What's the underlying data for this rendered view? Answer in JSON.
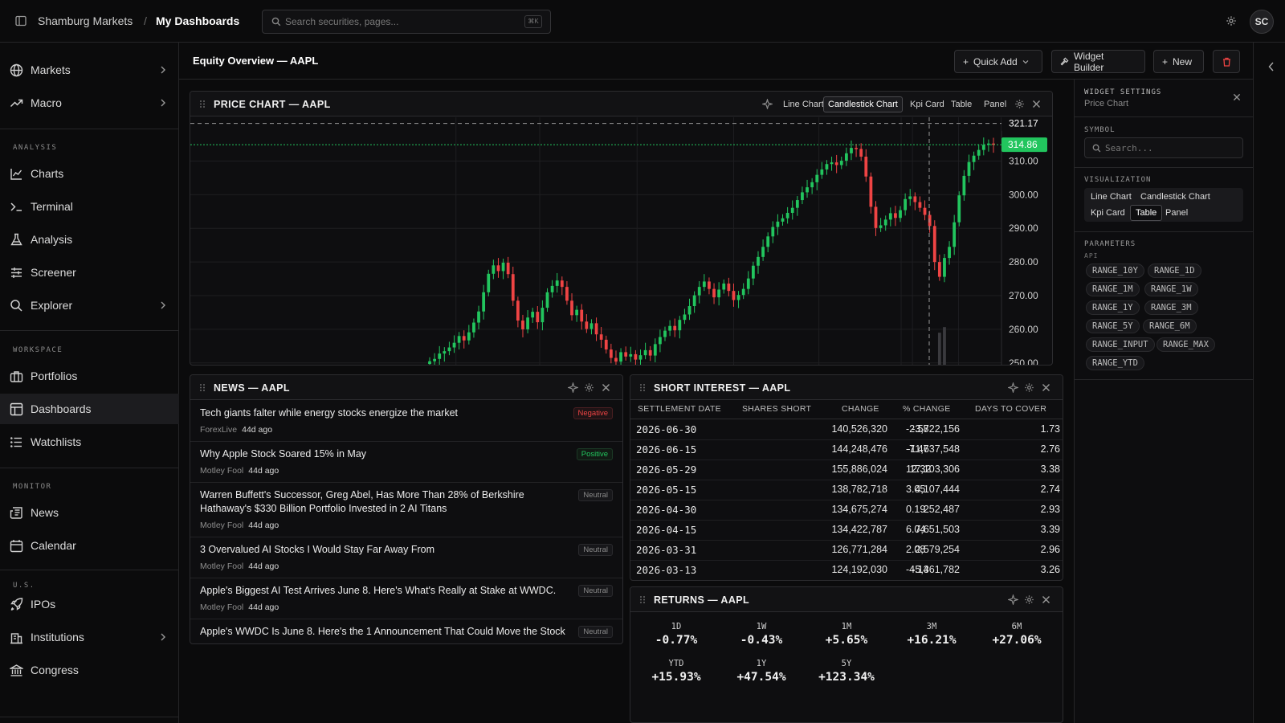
{
  "topbar": {
    "org": "Shamburg Markets",
    "separator": "/",
    "page": "My Dashboards",
    "search_placeholder": "Search securities, pages...",
    "shortcut": "⌘K",
    "avatar_initials": "SC"
  },
  "sidebar": {
    "top_items": [
      {
        "label": "Markets"
      },
      {
        "label": "Macro"
      }
    ],
    "sections": [
      {
        "heading": "ANALYSIS",
        "items": [
          "Charts",
          "Terminal",
          "Analysis",
          "Screener",
          "Explorer"
        ]
      },
      {
        "heading": "WORKSPACE",
        "items": [
          "Portfolios",
          "Dashboards",
          "Watchlists"
        ]
      },
      {
        "heading": "MONITOR",
        "items": [
          "News",
          "Calendar"
        ]
      },
      {
        "heading": "U.S.",
        "items": [
          "IPOs",
          "Institutions",
          "Congress"
        ]
      }
    ],
    "active": "Dashboards"
  },
  "dashboard": {
    "title": "Equity Overview — AAPL",
    "buttons": {
      "quick_add": "Quick Add",
      "widget_builder": "Widget Builder",
      "new": "New"
    }
  },
  "price_widget": {
    "title": "PRICE CHART — AAPL",
    "tabs": [
      "Line Chart",
      "Candlestick Chart",
      "Kpi Card",
      "Table",
      "Panel"
    ],
    "selected_tab": "Candlestick Chart",
    "crosshair_price": "321.17",
    "last_price": "314.86",
    "colors": {
      "up": "#22c55e",
      "down": "#ef4444"
    }
  },
  "chart_data": {
    "type": "candlestick",
    "yticks": [
      310,
      300,
      290,
      280,
      270,
      260,
      250
    ],
    "ylim": [
      249,
      323
    ],
    "last_price": 314.86,
    "crosshair_price": 321.17,
    "closes": [
      250.5,
      251.2,
      252.8,
      253.5,
      254.6,
      256.0,
      258.0,
      256.7,
      259.1,
      262.0,
      265.3,
      271.0,
      276.5,
      279.0,
      277.3,
      279.8,
      276.4,
      268.5,
      262.6,
      260.0,
      263.5,
      265.2,
      262.1,
      266.4,
      271.0,
      272.9,
      274.5,
      272.6,
      268.5,
      264.2,
      265.8,
      262.3,
      260.1,
      261.8,
      258.5,
      256.9,
      254.0,
      251.5,
      250.4,
      253.2,
      251.9,
      252.6,
      251.0,
      252.3,
      253.8,
      252.2,
      255.6,
      257.7,
      259.6,
      261.0,
      259.7,
      262.8,
      264.4,
      266.9,
      270.1,
      272.6,
      274.2,
      272.0,
      269.5,
      271.8,
      273.6,
      271.4,
      268.7,
      270.2,
      272.0,
      275.1,
      278.9,
      281.5,
      284.5,
      287.6,
      290.4,
      292.0,
      293.0,
      294.6,
      296.1,
      298.4,
      300.7,
      302.2,
      303.7,
      305.9,
      307.5,
      309.1,
      309.6,
      308.8,
      310.1,
      312.3,
      313.9,
      313.6,
      311.3,
      305.4,
      296.4,
      290.1,
      290.9,
      292.6,
      294.5,
      293.1,
      295.4,
      298.7,
      299.5,
      297.8,
      296.1,
      294.0,
      290.7,
      280.0,
      275.6,
      281.2,
      284.5,
      291.8,
      299.8,
      305.6,
      309.7,
      311.6,
      313.3,
      314.8,
      315.2,
      314.86
    ],
    "volume_bars": [
      {
        "index": 104,
        "level": 0.3
      },
      {
        "index": 105,
        "level": 0.35
      }
    ]
  },
  "news_widget": {
    "title": "NEWS — AAPL",
    "items": [
      {
        "title": "Tech giants falter while energy stocks energize the market",
        "source": "ForexLive",
        "age": "44d ago",
        "sentiment": "Negative"
      },
      {
        "title": "Why Apple Stock Soared 15% in May",
        "source": "Motley Fool",
        "age": "44d ago",
        "sentiment": "Positive"
      },
      {
        "title": "Warren Buffett's Successor, Greg Abel, Has More Than 28% of Berkshire Hathaway's $330 Billion Portfolio Invested in 2 AI Titans",
        "source": "Motley Fool",
        "age": "44d ago",
        "sentiment": "Neutral"
      },
      {
        "title": "3 Overvalued AI Stocks I Would Stay Far Away From",
        "source": "Motley Fool",
        "age": "44d ago",
        "sentiment": "Neutral"
      },
      {
        "title": "Apple's Biggest AI Test Arrives June 8. Here's What's Really at Stake at WWDC.",
        "source": "Motley Fool",
        "age": "44d ago",
        "sentiment": "Neutral"
      },
      {
        "title": "Apple's WWDC Is June 8. Here's the 1 Announcement That Could Move the Stock",
        "source": "",
        "age": "",
        "sentiment": "Neutral"
      }
    ]
  },
  "short_widget": {
    "title": "SHORT INTEREST — AAPL",
    "columns": [
      "SETTLEMENT DATE",
      "SHARES SHORT",
      "CHANGE",
      "% CHANGE",
      "DAYS TO COVER"
    ],
    "rows": [
      [
        "2026-06-30",
        "140,526,320",
        "-3,722,156",
        "-2.58",
        "1.73"
      ],
      [
        "2026-06-15",
        "144,248,476",
        "-11,637,548",
        "-7.47",
        "2.76"
      ],
      [
        "2026-05-29",
        "155,886,024",
        "17,103,306",
        "12.32",
        "3.38"
      ],
      [
        "2026-05-15",
        "138,782,718",
        "4,107,444",
        "3.05",
        "2.74"
      ],
      [
        "2026-04-30",
        "134,675,274",
        "252,487",
        "0.19",
        "2.93"
      ],
      [
        "2026-04-15",
        "134,422,787",
        "7,651,503",
        "6.04",
        "3.39"
      ],
      [
        "2026-03-31",
        "126,771,284",
        "2,579,254",
        "2.08",
        "2.96"
      ],
      [
        "2026-03-13",
        "124,192,030",
        "-5,361,782",
        "-4.14",
        "3.26"
      ]
    ]
  },
  "returns_widget": {
    "title": "RETURNS — AAPL",
    "items": [
      {
        "label": "1D",
        "value": "-0.77%"
      },
      {
        "label": "1W",
        "value": "-0.43%"
      },
      {
        "label": "1M",
        "value": "+5.65%"
      },
      {
        "label": "3M",
        "value": "+16.21%"
      },
      {
        "label": "6M",
        "value": "+27.06%"
      },
      {
        "label": "YTD",
        "value": "+15.93%"
      },
      {
        "label": "1Y",
        "value": "+47.54%"
      },
      {
        "label": "5Y",
        "value": "+123.34%"
      }
    ]
  },
  "settings_panel": {
    "title": "WIDGET SETTINGS",
    "subtitle": "Price Chart",
    "symbol_label": "SYMBOL",
    "symbol_placeholder": "Search...",
    "viz_label": "VISUALIZATION",
    "viz_options": [
      "Line Chart",
      "Candlestick Chart",
      "Kpi Card",
      "Table",
      "Panel"
    ],
    "viz_selected": "Table",
    "params_label": "PARAMETERS",
    "api_label": "API",
    "params": [
      "RANGE_10Y",
      "RANGE_1D",
      "RANGE_1M",
      "RANGE_1W",
      "RANGE_1Y",
      "RANGE_3M",
      "RANGE_5Y",
      "RANGE_6M",
      "RANGE_INPUT",
      "RANGE_MAX",
      "RANGE_YTD"
    ]
  }
}
